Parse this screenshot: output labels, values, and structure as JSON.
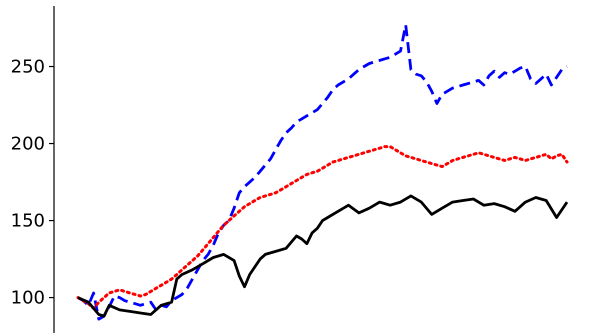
{
  "chart_data": {
    "type": "line",
    "title": "",
    "xlabel": "",
    "ylabel": "",
    "ylim": [
      77,
      288
    ],
    "xlim": [
      0,
      94
    ],
    "yticks": [
      100,
      150,
      200,
      250
    ],
    "ytick_labels": [
      "100",
      "150",
      "200",
      "250"
    ],
    "grid": false,
    "legend": "none",
    "series": [
      {
        "color": "#0000ff",
        "style": "dashed",
        "x": [
          0,
          1,
          2,
          3,
          4,
          5,
          6,
          7,
          8,
          9,
          10,
          11,
          12,
          13,
          14,
          15,
          16,
          17,
          18,
          19,
          20,
          21,
          22,
          23,
          24,
          25,
          26,
          27,
          28,
          29,
          30,
          31,
          32,
          33,
          34,
          35,
          36,
          37,
          38,
          39,
          40,
          41,
          42,
          43,
          44,
          45,
          46,
          47,
          48,
          49,
          50,
          51,
          52,
          53,
          54,
          55,
          56,
          57,
          58,
          59,
          60,
          61,
          62,
          63,
          64,
          65,
          66,
          67,
          68,
          69,
          70,
          71,
          72,
          73,
          74,
          75,
          76,
          77,
          78,
          79,
          80,
          81,
          82,
          83,
          84,
          85,
          86,
          87,
          88,
          89,
          90,
          91,
          92,
          93,
          94
        ],
        "values": [
          100,
          98,
          95,
          103,
          86,
          88,
          94,
          101,
          100,
          98,
          97,
          96,
          95,
          96,
          97,
          92,
          95,
          94,
          98,
          100,
          102,
          106,
          112,
          118,
          124,
          128,
          134,
          142,
          147,
          150,
          158,
          168,
          172,
          175,
          178,
          182,
          186,
          190,
          196,
          202,
          207,
          210,
          214,
          216,
          218,
          220,
          222,
          226,
          230,
          235,
          238,
          240,
          242,
          245,
          248,
          250,
          252,
          253,
          254,
          255,
          256,
          258,
          260,
          277,
          248,
          245,
          244,
          240,
          234,
          226,
          232,
          234,
          236,
          237,
          238,
          239,
          240,
          241,
          238,
          244,
          247,
          243,
          246,
          245,
          247,
          249,
          250,
          242,
          239,
          242,
          245,
          238,
          243,
          248,
          250
        ]
      },
      {
        "color": "#ff0000",
        "style": "dotted",
        "x": [
          0,
          1,
          2,
          3,
          4,
          5,
          6,
          7,
          8,
          9,
          10,
          11,
          12,
          13,
          14,
          15,
          16,
          17,
          18,
          19,
          20,
          21,
          22,
          23,
          24,
          25,
          26,
          27,
          28,
          29,
          30,
          31,
          32,
          33,
          34,
          35,
          36,
          37,
          38,
          39,
          40,
          41,
          42,
          43,
          44,
          45,
          46,
          47,
          48,
          49,
          50,
          51,
          52,
          53,
          54,
          55,
          56,
          57,
          58,
          59,
          60,
          61,
          62,
          63,
          64,
          65,
          66,
          67,
          68,
          69,
          70,
          71,
          72,
          73,
          74,
          75,
          76,
          77,
          78,
          79,
          80,
          81,
          82,
          83,
          84,
          85,
          86,
          87,
          88,
          89,
          90,
          91,
          92,
          93,
          94
        ],
        "values": [
          100,
          98,
          96,
          93,
          97,
          100,
          103,
          104,
          105,
          104,
          103,
          102,
          101,
          102,
          104,
          106,
          108,
          110,
          112,
          115,
          118,
          121,
          124,
          127,
          131,
          135,
          139,
          143,
          147,
          150,
          153,
          156,
          159,
          161,
          163,
          165,
          166,
          167,
          168,
          170,
          172,
          174,
          176,
          178,
          180,
          181,
          182,
          184,
          186,
          188,
          189,
          190,
          191,
          192,
          193,
          194,
          195,
          196,
          197,
          198,
          198,
          196,
          194,
          192,
          191,
          190,
          189,
          188,
          187,
          186,
          185,
          187,
          189,
          190,
          191,
          192,
          193,
          194,
          193,
          192,
          191,
          190,
          189,
          190,
          191,
          190,
          189,
          190,
          191,
          192,
          193,
          190,
          192,
          193,
          188
        ]
      },
      {
        "color": "#000000",
        "style": "solid",
        "x": [
          0,
          2,
          3,
          4,
          5,
          6,
          8,
          10,
          12,
          14,
          16,
          18,
          19,
          20,
          22,
          24,
          26,
          28,
          30,
          31,
          32,
          33,
          34,
          35,
          36,
          38,
          40,
          41,
          42,
          43,
          44,
          45,
          46,
          47,
          48,
          50,
          52,
          54,
          56,
          58,
          60,
          62,
          64,
          66,
          68,
          70,
          72,
          74,
          76,
          78,
          80,
          82,
          84,
          86,
          88,
          90,
          92,
          94
        ],
        "values": [
          100,
          97,
          93,
          89,
          88,
          95,
          92,
          91,
          90,
          89,
          95,
          97,
          112,
          115,
          118,
          122,
          126,
          128,
          124,
          114,
          107,
          115,
          120,
          125,
          128,
          130,
          132,
          136,
          140,
          138,
          135,
          142,
          145,
          150,
          152,
          156,
          160,
          155,
          158,
          162,
          160,
          162,
          166,
          162,
          154,
          158,
          162,
          163,
          164,
          160,
          161,
          159,
          156,
          162,
          165,
          163,
          152,
          162
        ]
      }
    ]
  }
}
